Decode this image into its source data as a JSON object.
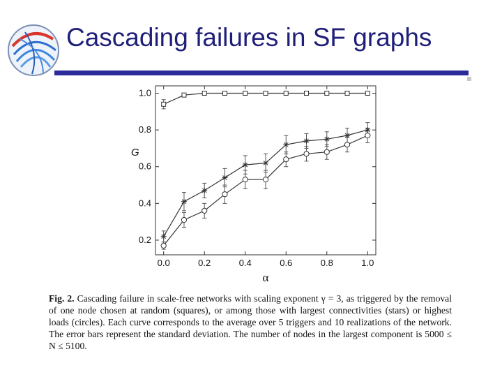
{
  "slide": {
    "title": "Cascading failures in SF graphs"
  },
  "colors": {
    "title": "#1f1f7a",
    "title_rule": "#2b2b9a",
    "plot_line": "#333333"
  },
  "caption": {
    "label": "Fig. 2.",
    "text": "Cascading failure in scale-free networks with scaling exponent γ = 3, as triggered by the removal of one node chosen at random (squares), or among those with largest connectivities (stars) or highest loads (circles). Each curve corresponds to the average over 5 triggers and 10 realizations of the network. The error bars represent the standard deviation. The number of nodes in the largest component is 5000 ≤ N ≤ 5100."
  },
  "chart_data": {
    "type": "line",
    "xlabel": "α",
    "ylabel": "G",
    "xlim": [
      -0.04,
      1.04
    ],
    "ylim": [
      0.12,
      1.04
    ],
    "xticks": [
      "0.0",
      "0.2",
      "0.4",
      "0.6",
      "0.8",
      "1.0"
    ],
    "yticks": [
      "0.2",
      "0.4",
      "0.6",
      "0.8",
      "1.0"
    ],
    "grid": false,
    "x": [
      0.0,
      0.1,
      0.2,
      0.3,
      0.4,
      0.5,
      0.6,
      0.7,
      0.8,
      0.9,
      1.0
    ],
    "series": [
      {
        "marker": "square",
        "values": [
          0.94,
          0.99,
          1.0,
          1.0,
          1.0,
          1.0,
          1.0,
          1.0,
          1.0,
          1.0,
          1.0
        ],
        "errors": [
          0.025,
          0.005,
          0.002,
          0.0,
          0.0,
          0.0,
          0.0,
          0.0,
          0.0,
          0.0,
          0.0
        ]
      },
      {
        "marker": "star",
        "values": [
          0.22,
          0.41,
          0.47,
          0.54,
          0.61,
          0.62,
          0.72,
          0.74,
          0.75,
          0.77,
          0.8
        ],
        "errors": [
          0.03,
          0.05,
          0.04,
          0.05,
          0.05,
          0.05,
          0.05,
          0.04,
          0.04,
          0.04,
          0.04
        ]
      },
      {
        "marker": "circle",
        "values": [
          0.17,
          0.31,
          0.36,
          0.45,
          0.53,
          0.53,
          0.64,
          0.67,
          0.68,
          0.72,
          0.77
        ],
        "errors": [
          0.02,
          0.04,
          0.04,
          0.05,
          0.05,
          0.05,
          0.04,
          0.04,
          0.04,
          0.04,
          0.04
        ]
      }
    ]
  }
}
